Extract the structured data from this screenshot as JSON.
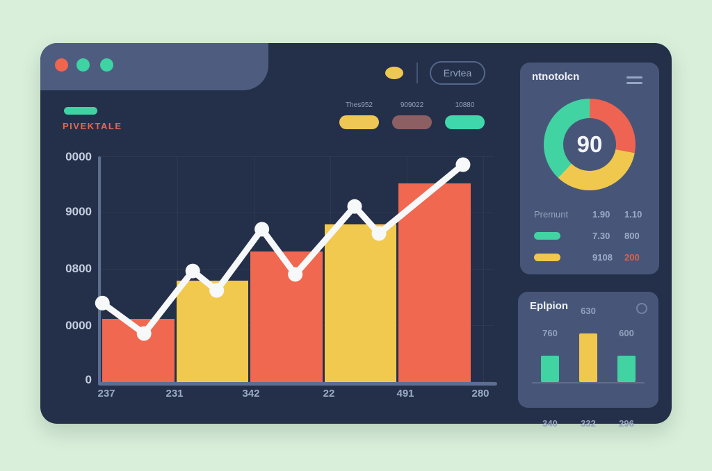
{
  "window": {
    "traffic_lights": [
      "#f0654d",
      "#3ed3a3",
      "#3ed3a3"
    ],
    "accent_dash_color": "#3fd3a4"
  },
  "header": {
    "title": "PIVEKTALE",
    "title_color": "#e2694f",
    "mini_dot_color": "#eec754",
    "button_label": "Ervtea"
  },
  "legend": {
    "items": [
      {
        "label": "Thes952",
        "color": "#eec754"
      },
      {
        "label": "909022",
        "color": "#8d5f63"
      },
      {
        "label": "10880",
        "color": "#3fd8ac"
      }
    ]
  },
  "chart_data": [
    {
      "id": "main-chart",
      "type": "bar+line",
      "x_labels": [
        "237",
        "231",
        "342",
        "22",
        "491",
        "280"
      ],
      "y_labels": [
        "0000",
        "9000",
        "0800",
        "0000",
        "0"
      ],
      "grid": true,
      "bars": [
        {
          "value_pct": 28,
          "color": "#f0684f"
        },
        {
          "value_pct": 45,
          "color": "#f2c94f"
        },
        {
          "value_pct": 58,
          "color": "#f0684f"
        },
        {
          "value_pct": 70,
          "color": "#f2c94f"
        },
        {
          "value_pct": 88,
          "color": "#f0684f"
        }
      ],
      "line": {
        "color": "#f7f8fa",
        "points_pct": [
          [
            0.4,
            65.0
          ],
          [
            11.0,
            78.5
          ],
          [
            23.4,
            50.8
          ],
          [
            29.5,
            59.4
          ],
          [
            41.0,
            32.3
          ],
          [
            49.5,
            52.3
          ],
          [
            64.6,
            22.2
          ],
          [
            70.8,
            34.2
          ],
          [
            92.2,
            3.7
          ]
        ]
      }
    },
    {
      "id": "donut-gauge",
      "type": "donut",
      "title": "ntnotolcn",
      "center_value": "90",
      "segments": [
        {
          "color": "#ef6352",
          "pct": 28
        },
        {
          "color": "#f0c84e",
          "pct": 34
        },
        {
          "color": "#41d3a2",
          "pct": 38
        }
      ],
      "rows": [
        {
          "label": "Premunt",
          "swatch": "",
          "val1": "1.90",
          "val2": "1.10",
          "val2_color": ""
        },
        {
          "label": "",
          "swatch": "#41d3a2",
          "val1": "7.30",
          "val2": "800",
          "val2_color": ""
        },
        {
          "label": "",
          "swatch": "#f0c84e",
          "val1": "9108",
          "val2": "200",
          "val2_color": "#e0604a"
        }
      ]
    },
    {
      "id": "mini-bars",
      "type": "bar",
      "title": "Eplpion",
      "bars": [
        {
          "top_label": "760",
          "bottom_label": "340",
          "value_pct": 44,
          "color": "#41d3a2"
        },
        {
          "top_label": "630",
          "bottom_label": "332",
          "value_pct": 81,
          "color": "#f0c84e"
        },
        {
          "top_label": "600",
          "bottom_label": "296",
          "value_pct": 44,
          "color": "#41d3a2"
        }
      ]
    }
  ]
}
